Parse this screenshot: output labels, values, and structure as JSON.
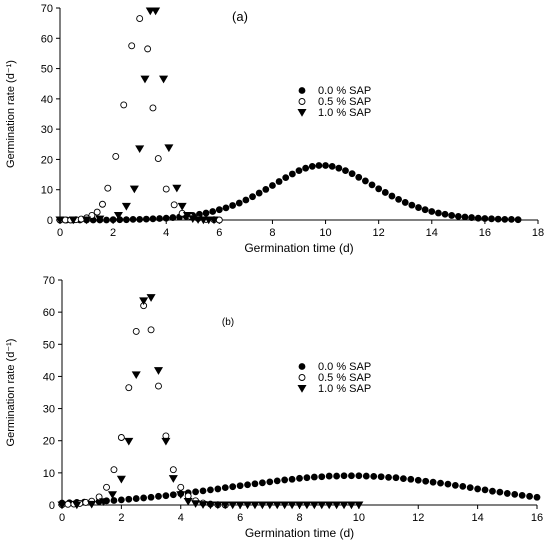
{
  "chart_data": [
    {
      "type": "scatter",
      "panel_label": "(a)",
      "xlabel": "Germination time (d)",
      "ylabel": "Germination rate (d⁻¹)",
      "xlim": [
        0,
        18
      ],
      "ylim": [
        0,
        70
      ],
      "xticks": [
        0,
        2,
        4,
        6,
        8,
        10,
        12,
        14,
        16,
        18
      ],
      "yticks": [
        0,
        10,
        20,
        30,
        40,
        50,
        60,
        70
      ],
      "grid": false,
      "legend_position": "right",
      "series": [
        {
          "name": "0.0 % SAP",
          "marker": "filled-circle",
          "x": [
            0,
            0.25,
            0.5,
            0.75,
            1,
            1.25,
            1.5,
            1.75,
            2,
            2.25,
            2.5,
            2.75,
            3,
            3.25,
            3.5,
            3.75,
            4,
            4.25,
            4.5,
            4.75,
            5,
            5.25,
            5.5,
            5.75,
            6,
            6.25,
            6.5,
            6.75,
            7,
            7.25,
            7.5,
            7.75,
            8,
            8.25,
            8.5,
            8.75,
            9,
            9.25,
            9.5,
            9.75,
            10,
            10.25,
            10.5,
            10.75,
            11,
            11.25,
            11.5,
            11.75,
            12,
            12.25,
            12.5,
            12.75,
            13,
            13.25,
            13.5,
            13.75,
            14,
            14.25,
            14.5,
            14.75,
            15,
            15.25,
            15.5,
            15.75,
            16,
            16.25,
            16.5,
            16.75,
            17,
            17.25
          ],
          "y": [
            0,
            0,
            0,
            0,
            0,
            0,
            0,
            0,
            0.1,
            0.1,
            0.1,
            0.2,
            0.2,
            0.3,
            0.4,
            0.5,
            0.6,
            0.8,
            1.0,
            1.2,
            1.5,
            1.9,
            2.3,
            2.8,
            3.4,
            4.0,
            4.8,
            5.6,
            6.6,
            7.7,
            8.9,
            10.1,
            11.4,
            12.7,
            14.0,
            15.2,
            16.3,
            17.1,
            17.7,
            18.0,
            18.0,
            17.7,
            17.1,
            16.3,
            15.3,
            14.1,
            12.9,
            11.6,
            10.3,
            9.1,
            7.9,
            6.8,
            5.8,
            4.9,
            4.1,
            3.4,
            2.8,
            2.3,
            1.9,
            1.5,
            1.2,
            1.0,
            0.8,
            0.6,
            0.5,
            0.4,
            0.3,
            0.2,
            0.2,
            0.1
          ]
        },
        {
          "name": "0.5 % SAP",
          "marker": "open-circle",
          "x": [
            0,
            0.2,
            0.4,
            0.6,
            0.8,
            1.0,
            1.2,
            1.4,
            1.6,
            1.8,
            2.1,
            2.4,
            2.7,
            3.0,
            3.3,
            3.5,
            3.7,
            4.0,
            4.3,
            4.6,
            4.9,
            5.2,
            5.5,
            5.8,
            6.0
          ],
          "y": [
            0,
            0,
            0,
            0.1,
            0.3,
            0.7,
            1.5,
            2.6,
            5.2,
            10.5,
            21,
            38,
            57.5,
            66.5,
            56.5,
            37,
            20.3,
            10.2,
            5.0,
            2.2,
            1.2,
            0.5,
            0.2,
            0.1,
            0
          ]
        },
        {
          "name": "1.0 % SAP",
          "marker": "filled-triangle-down",
          "x": [
            0,
            0.5,
            1.0,
            1.5,
            2.2,
            2.5,
            2.8,
            3.0,
            3.2,
            3.4,
            3.6,
            3.9,
            4.1,
            4.4,
            4.6,
            4.8,
            5.0,
            5.2,
            5.4,
            5.6,
            5.8
          ],
          "y": [
            0,
            0,
            0,
            0.3,
            1.5,
            4.5,
            10.2,
            23.5,
            46.5,
            69,
            69,
            46.5,
            23.8,
            10.5,
            4.5,
            1.5,
            0.4,
            0.1,
            0,
            0,
            0
          ]
        }
      ]
    },
    {
      "type": "scatter",
      "panel_label": "(b)",
      "xlabel": "Germination time (d)",
      "ylabel": "Germination rate (d⁻¹)",
      "xlim": [
        0,
        16
      ],
      "ylim": [
        0,
        70
      ],
      "xticks": [
        0,
        2,
        4,
        6,
        8,
        10,
        12,
        14,
        16
      ],
      "yticks": [
        0,
        10,
        20,
        30,
        40,
        50,
        60,
        70
      ],
      "grid": false,
      "legend_position": "right",
      "series": [
        {
          "name": "0.0 % SAP",
          "marker": "filled-circle",
          "x": [
            0,
            0.25,
            0.5,
            0.75,
            1,
            1.25,
            1.5,
            1.75,
            2,
            2.25,
            2.5,
            2.75,
            3,
            3.25,
            3.5,
            3.75,
            4,
            4.25,
            4.5,
            4.75,
            5,
            5.25,
            5.5,
            5.75,
            6,
            6.25,
            6.5,
            6.75,
            7,
            7.25,
            7.5,
            7.75,
            8,
            8.25,
            8.5,
            8.75,
            9,
            9.25,
            9.5,
            9.75,
            10,
            10.25,
            10.5,
            10.75,
            11,
            11.25,
            11.5,
            11.75,
            12,
            12.25,
            12.5,
            12.75,
            13,
            13.25,
            13.5,
            13.75,
            14,
            14.25,
            14.5,
            14.75,
            15,
            15.25,
            15.5,
            15.75,
            16
          ],
          "y": [
            0.6,
            0.7,
            0.8,
            0.9,
            1.0,
            1.1,
            1.3,
            1.4,
            1.6,
            1.8,
            2.0,
            2.2,
            2.4,
            2.7,
            2.9,
            3.2,
            3.5,
            3.8,
            4.1,
            4.4,
            4.7,
            5.0,
            5.4,
            5.7,
            6.0,
            6.3,
            6.6,
            6.9,
            7.2,
            7.5,
            7.8,
            8.0,
            8.3,
            8.5,
            8.7,
            8.8,
            9.0,
            9.0,
            9.1,
            9.1,
            9.1,
            9.0,
            8.9,
            8.8,
            8.6,
            8.5,
            8.2,
            8.0,
            7.7,
            7.4,
            7.1,
            6.8,
            6.5,
            6.1,
            5.8,
            5.4,
            5.0,
            4.7,
            4.3,
            4.0,
            3.6,
            3.3,
            3.0,
            2.7,
            2.4
          ]
        },
        {
          "name": "0.5 % SAP",
          "marker": "open-circle",
          "x": [
            0,
            0.2,
            0.4,
            0.6,
            0.8,
            1.0,
            1.25,
            1.5,
            1.75,
            2.0,
            2.25,
            2.5,
            2.75,
            3.0,
            3.25,
            3.5,
            3.75,
            4.0,
            4.25,
            4.5,
            4.75,
            5.0,
            5.25,
            5.5
          ],
          "y": [
            0.1,
            0.2,
            0.3,
            0.5,
            0.8,
            1.2,
            2.5,
            5.5,
            11,
            21,
            36.5,
            54,
            62,
            54.5,
            37,
            21.5,
            11,
            5.5,
            2.8,
            1.3,
            0.6,
            0.3,
            0.1,
            0
          ]
        },
        {
          "name": "1.0 % SAP",
          "marker": "filled-triangle-down",
          "x": [
            0,
            0.5,
            1.0,
            1.4,
            1.7,
            2.0,
            2.25,
            2.5,
            2.75,
            3.0,
            3.25,
            3.5,
            3.75,
            4.0,
            4.25,
            4.5,
            4.75,
            5.0,
            5.25,
            5.5,
            5.75,
            6.0,
            6.25,
            6.5,
            6.75,
            7.0,
            7.25,
            7.5,
            7.75,
            8.0,
            8.25,
            8.5,
            8.75,
            9.0,
            9.25,
            9.5,
            9.75,
            10.0
          ],
          "y": [
            0,
            0,
            0.2,
            1.0,
            3.2,
            8,
            19.8,
            40.5,
            63.5,
            64.5,
            41.8,
            19.8,
            8.2,
            3.2,
            1.1,
            0.4,
            0.1,
            0,
            0,
            0,
            0,
            0,
            0,
            0,
            0,
            0,
            0,
            0,
            0,
            0,
            0,
            0,
            0,
            0,
            0,
            0,
            0,
            0
          ]
        }
      ]
    }
  ]
}
